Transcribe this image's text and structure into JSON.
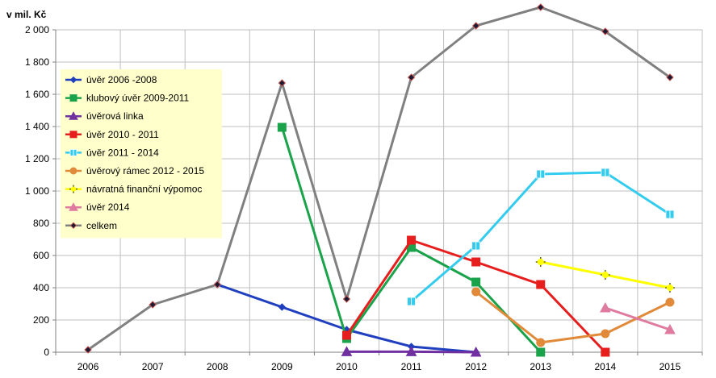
{
  "chart_data": {
    "type": "line",
    "title": "",
    "ylabel": "v mil. Kč",
    "xlabel": "",
    "ylim": [
      0,
      2000
    ],
    "ytick_step": 200,
    "ytick_labels": [
      "0",
      "200",
      "400",
      "600",
      "800",
      "1 000",
      "1 200",
      "1 400",
      "1 600",
      "1 800",
      "2 000"
    ],
    "categories": [
      "2006",
      "2007",
      "2008",
      "2009",
      "2010",
      "2011",
      "2012",
      "2013",
      "2014",
      "2015"
    ],
    "grid": true,
    "legend_position": "top-left",
    "legend_background": "#FFFFCC",
    "series": [
      {
        "name": "úvěr 2006 -2008",
        "color": "#1F3FBF",
        "marker": "diamond",
        "values": [
          null,
          null,
          420,
          280,
          140,
          35,
          0,
          null,
          null,
          null
        ]
      },
      {
        "name": "klubový úvěr 2009-2011",
        "color": "#1AA34A",
        "marker": "square",
        "values": [
          null,
          null,
          null,
          1395,
          85,
          650,
          435,
          0,
          null,
          null
        ]
      },
      {
        "name": "úvěrová linka",
        "color": "#7030A0",
        "marker": "triangle",
        "values": [
          null,
          null,
          null,
          null,
          3,
          3,
          0,
          null,
          null,
          null
        ]
      },
      {
        "name": "úvěr 2010 - 2011",
        "color": "#E61E1E",
        "marker": "square",
        "values": [
          null,
          null,
          null,
          null,
          105,
          695,
          560,
          420,
          0,
          null
        ]
      },
      {
        "name": "úvěr 2011 - 2014",
        "color": "#33CCEE",
        "marker": "square-cross",
        "values": [
          null,
          null,
          null,
          null,
          null,
          315,
          660,
          1105,
          1115,
          855
        ]
      },
      {
        "name": "úvěrový rámec 2012 - 2015",
        "color": "#E08A3A",
        "marker": "circle",
        "values": [
          null,
          null,
          null,
          null,
          null,
          null,
          375,
          60,
          115,
          310
        ]
      },
      {
        "name": "návratná finanční výpomoc",
        "color": "#FFFF00",
        "marker": "plus",
        "values": [
          null,
          null,
          null,
          null,
          null,
          null,
          null,
          560,
          480,
          400
        ]
      },
      {
        "name": "úvěr 2014",
        "color": "#E07BA0",
        "marker": "triangle",
        "values": [
          null,
          null,
          null,
          null,
          null,
          null,
          null,
          null,
          275,
          140
        ]
      },
      {
        "name": "celkem",
        "color": "#808080",
        "marker": "diamond-dark",
        "values": [
          15,
          295,
          420,
          1670,
          330,
          1705,
          2025,
          2140,
          1990,
          1705
        ]
      }
    ]
  }
}
